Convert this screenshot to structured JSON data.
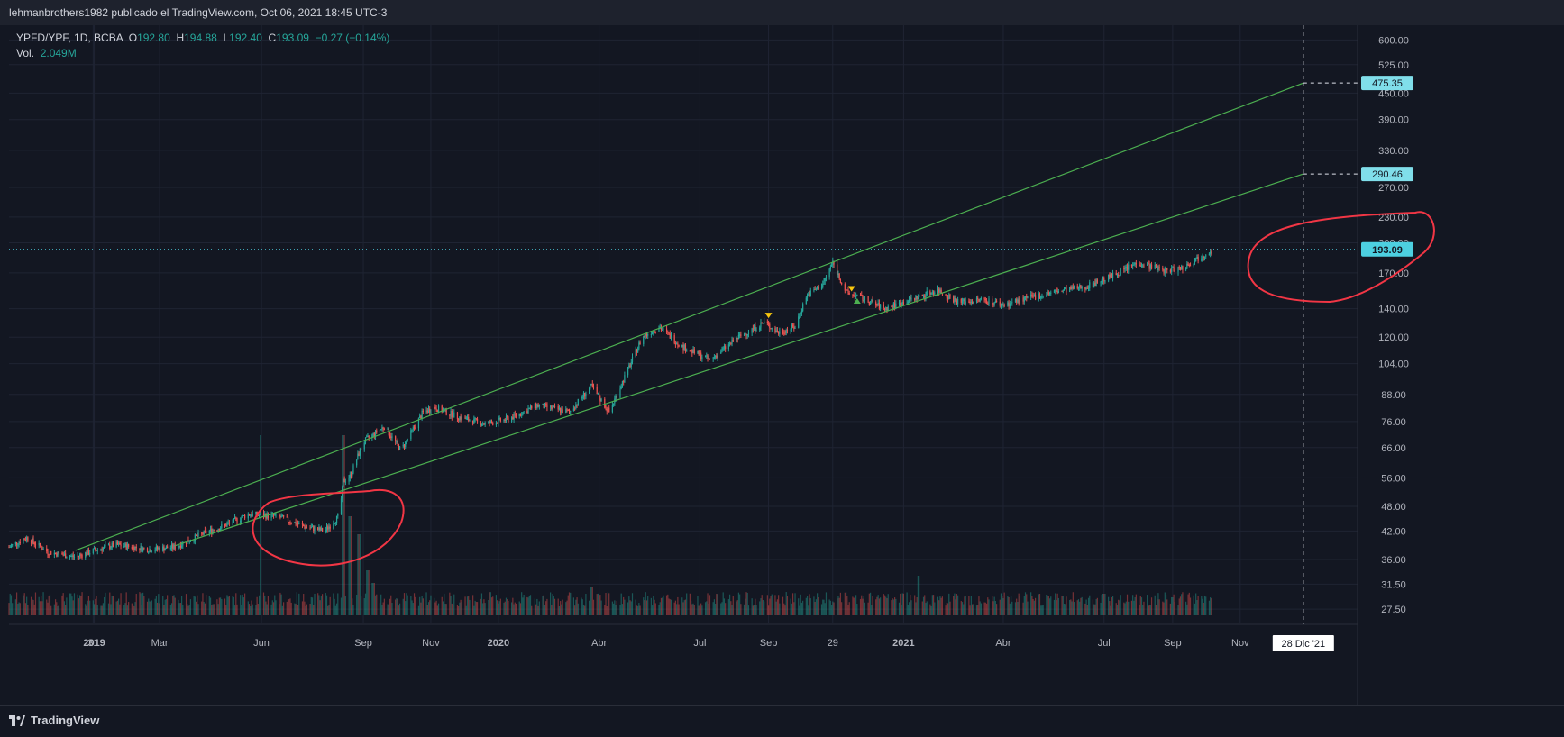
{
  "header": {
    "text": "lehmanbrothers1982 publicado el TradingView.com, Oct 06, 2021 18:45 UTC-3"
  },
  "legend": {
    "symbol": "YPFD/YPF, 1D, BCBA",
    "o_label": "O",
    "o": "192.80",
    "h_label": "H",
    "h": "194.88",
    "l_label": "L",
    "l": "192.40",
    "c_label": "C",
    "c": "193.09",
    "change": "−0.27 (−0.14%)",
    "vol_label": "Vol.",
    "vol": "2.049M"
  },
  "footer": {
    "brand": "TradingView"
  },
  "colors": {
    "background": "#131722",
    "grid": "#1f2433",
    "up": "#26a69a",
    "down": "#ef5350",
    "channel": "#4caf50",
    "annotation": "#f23645",
    "axis_text": "#b2b5be",
    "price_tag": "#80deea",
    "last_price_tag": "#4dd0e1"
  },
  "chart_data": {
    "type": "candlestick",
    "scale": "log",
    "y_ticks": [
      "600.00",
      "525.00",
      "450.00",
      "390.00",
      "330.00",
      "270.00",
      "230.00",
      "200.00",
      "170.00",
      "140.00",
      "120.00",
      "104.00",
      "88.00",
      "76.00",
      "66.00",
      "56.00",
      "48.00",
      "42.00",
      "36.00",
      "31.50",
      "27.50"
    ],
    "y_tick_values": [
      600,
      525,
      450,
      390,
      330,
      270,
      230,
      200,
      170,
      140,
      120,
      104,
      88,
      76,
      66,
      56,
      48,
      42,
      36,
      31.5,
      27.5
    ],
    "ylim": [
      26.6,
      650
    ],
    "x_tick_labels": [
      "31",
      "2019",
      "Mar",
      "Jun",
      "Sep",
      "Nov",
      "2020",
      "Abr",
      "Jul",
      "Sep",
      "29",
      "2021",
      "Abr",
      "Jul",
      "Sep",
      "Nov"
    ],
    "x_tick_bold": [
      false,
      true,
      false,
      false,
      false,
      false,
      true,
      false,
      false,
      false,
      false,
      true,
      false,
      false,
      false,
      false
    ],
    "x_tick_dates": [
      "2018-12-31",
      "2019-01-01",
      "2019-03-01",
      "2019-06-01",
      "2019-09-01",
      "2019-11-01",
      "2020-01-01",
      "2020-04-01",
      "2020-07-01",
      "2020-09-01",
      "2020-10-29",
      "2021-01-01",
      "2021-04-01",
      "2021-07-01",
      "2021-09-01",
      "2021-11-01"
    ],
    "xlim": [
      "2018-10-16",
      "2022-02-15"
    ],
    "price_path": [
      {
        "date": "2018-10-16",
        "price": 38.5
      },
      {
        "date": "2018-11-01",
        "price": 40.5
      },
      {
        "date": "2018-11-20",
        "price": 37.5
      },
      {
        "date": "2018-12-15",
        "price": 36.5
      },
      {
        "date": "2019-01-01",
        "price": 37.8
      },
      {
        "date": "2019-01-20",
        "price": 39.0
      },
      {
        "date": "2019-02-20",
        "price": 38.0
      },
      {
        "date": "2019-03-15",
        "price": 38.5
      },
      {
        "date": "2019-04-10",
        "price": 41.5
      },
      {
        "date": "2019-05-01",
        "price": 43.5
      },
      {
        "date": "2019-05-20",
        "price": 46.0
      },
      {
        "date": "2019-06-15",
        "price": 45.5
      },
      {
        "date": "2019-07-10",
        "price": 43.0
      },
      {
        "date": "2019-07-28",
        "price": 42.0
      },
      {
        "date": "2019-08-10",
        "price": 45.5
      },
      {
        "date": "2019-08-14",
        "price": 55.0
      },
      {
        "date": "2019-08-20",
        "price": 56.5
      },
      {
        "date": "2019-09-01",
        "price": 68.0
      },
      {
        "date": "2019-09-20",
        "price": 74.0
      },
      {
        "date": "2019-10-05",
        "price": 65.0
      },
      {
        "date": "2019-10-25",
        "price": 80.0
      },
      {
        "date": "2019-11-05",
        "price": 82.0
      },
      {
        "date": "2019-11-25",
        "price": 78.0
      },
      {
        "date": "2019-12-20",
        "price": 75.0
      },
      {
        "date": "2020-01-10",
        "price": 77.0
      },
      {
        "date": "2020-02-05",
        "price": 83.0
      },
      {
        "date": "2020-03-05",
        "price": 80.0
      },
      {
        "date": "2020-03-25",
        "price": 92.0
      },
      {
        "date": "2020-04-10",
        "price": 80.0
      },
      {
        "date": "2020-04-25",
        "price": 98.0
      },
      {
        "date": "2020-05-10",
        "price": 120.0
      },
      {
        "date": "2020-05-25",
        "price": 127.0
      },
      {
        "date": "2020-06-15",
        "price": 114.0
      },
      {
        "date": "2020-07-10",
        "price": 106.0
      },
      {
        "date": "2020-08-05",
        "price": 120.0
      },
      {
        "date": "2020-08-28",
        "price": 130.0
      },
      {
        "date": "2020-09-10",
        "price": 123.0
      },
      {
        "date": "2020-09-25",
        "price": 127.0
      },
      {
        "date": "2020-10-05",
        "price": 150.0
      },
      {
        "date": "2020-10-20",
        "price": 160.0
      },
      {
        "date": "2020-10-29",
        "price": 180.0
      },
      {
        "date": "2020-11-10",
        "price": 153.0
      },
      {
        "date": "2020-11-25",
        "price": 148.0
      },
      {
        "date": "2020-12-15",
        "price": 140.0
      },
      {
        "date": "2021-01-10",
        "price": 148.0
      },
      {
        "date": "2021-02-01",
        "price": 155.0
      },
      {
        "date": "2021-02-20",
        "price": 145.0
      },
      {
        "date": "2021-03-15",
        "price": 147.0
      },
      {
        "date": "2021-04-01",
        "price": 143.0
      },
      {
        "date": "2021-05-10",
        "price": 152.0
      },
      {
        "date": "2021-06-15",
        "price": 158.0
      },
      {
        "date": "2021-07-10",
        "price": 168.0
      },
      {
        "date": "2021-08-01",
        "price": 180.0
      },
      {
        "date": "2021-08-25",
        "price": 172.0
      },
      {
        "date": "2021-09-10",
        "price": 175.0
      },
      {
        "date": "2021-09-25",
        "price": 185.0
      },
      {
        "date": "2021-10-06",
        "price": 193.09
      }
    ],
    "volume_spikes": [
      {
        "date": "2019-06-01",
        "ratio": 1.0
      },
      {
        "date": "2019-08-14",
        "ratio": 1.0
      },
      {
        "date": "2019-08-20",
        "ratio": 0.55
      },
      {
        "date": "2019-08-28",
        "ratio": 0.45
      },
      {
        "date": "2019-09-05",
        "ratio": 0.25
      },
      {
        "date": "2019-09-10",
        "ratio": 0.18
      },
      {
        "date": "2020-03-25",
        "ratio": 0.16
      },
      {
        "date": "2021-01-15",
        "ratio": 0.22
      },
      {
        "date": "2021-07-01",
        "ratio": 0.12
      },
      {
        "date": "2021-09-01",
        "ratio": 0.1
      }
    ],
    "channel_lines": [
      {
        "name": "upper",
        "from": {
          "date": "2018-12-15",
          "price": 37.8
        },
        "to": {
          "date": "2021-12-28",
          "price": 475.35
        }
      },
      {
        "name": "lower",
        "from": {
          "date": "2019-03-15",
          "price": 38.8
        },
        "to": {
          "date": "2021-12-28",
          "price": 290.46
        }
      }
    ],
    "markers": [
      {
        "date": "2020-09-01",
        "price": 135,
        "shape": "down",
        "color": "#f9c80e"
      },
      {
        "date": "2020-11-15",
        "price": 156,
        "shape": "down",
        "color": "#f9c80e"
      },
      {
        "date": "2020-11-20",
        "price": 146,
        "shape": "up",
        "color": "#4caf50"
      }
    ],
    "crosshair": {
      "date": "2021-12-28",
      "label": "28 Dic '21"
    },
    "price_tags": [
      {
        "value": "475.35",
        "price": 475.35,
        "kind": "projection"
      },
      {
        "value": "290.46",
        "price": 290.46,
        "kind": "projection"
      },
      {
        "value": "193.09",
        "price": 193.09,
        "kind": "last"
      }
    ]
  }
}
